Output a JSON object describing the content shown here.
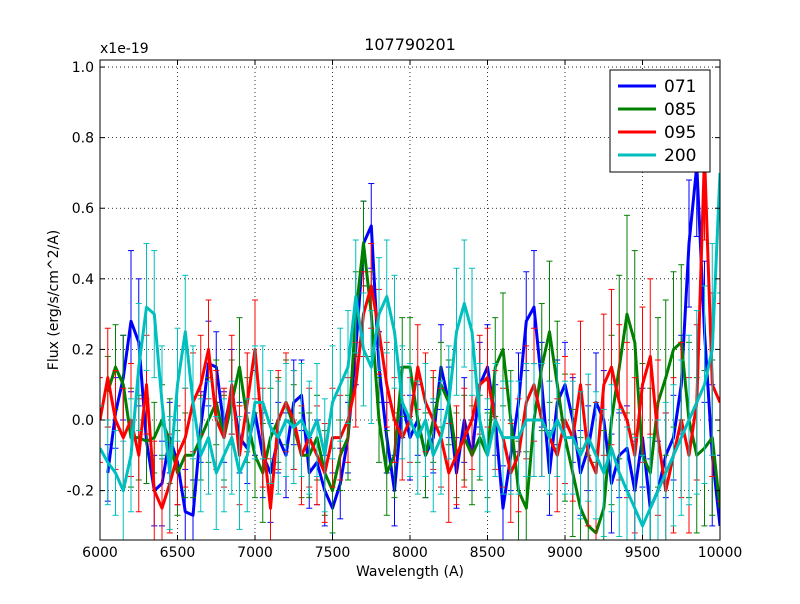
{
  "chart_data": {
    "type": "line",
    "title": "107790201",
    "xlabel": "Wavelength (A)",
    "ylabel": "Flux (erg/s/cm^2/A)",
    "y_multiplier_label": "x1e-19",
    "xlim": [
      6000,
      10000
    ],
    "ylim": [
      -0.34,
      1.02
    ],
    "xticks": [
      6000,
      6500,
      7000,
      7500,
      8000,
      8500,
      9000,
      9500,
      10000
    ],
    "xtick_labels": [
      "6000",
      "6500",
      "7000",
      "7500",
      "8000",
      "8500",
      "9000",
      "9500",
      "10000"
    ],
    "yticks": [
      -0.2,
      0.0,
      0.2,
      0.4,
      0.6,
      0.8,
      1.0
    ],
    "ytick_labels": [
      "-0.2",
      "0.0",
      "0.2",
      "0.4",
      "0.6",
      "0.8",
      "1.0"
    ],
    "grid": true,
    "legend_position": "top-right",
    "error_bars": true,
    "series": [
      {
        "name": "071",
        "color": "#0000ff",
        "x": [
          6050,
          6100,
          6150,
          6200,
          6250,
          6300,
          6350,
          6400,
          6450,
          6500,
          6550,
          6600,
          6650,
          6700,
          6750,
          6800,
          6850,
          6900,
          6950,
          7000,
          7050,
          7100,
          7150,
          7200,
          7250,
          7300,
          7350,
          7400,
          7450,
          7500,
          7550,
          7600,
          7650,
          7700,
          7750,
          7800,
          7850,
          7900,
          7950,
          8000,
          8050,
          8100,
          8150,
          8200,
          8250,
          8300,
          8350,
          8400,
          8450,
          8500,
          8550,
          8600,
          8650,
          8700,
          8750,
          8800,
          8850,
          8900,
          8950,
          9000,
          9050,
          9100,
          9150,
          9200,
          9250,
          9300,
          9350,
          9400,
          9450,
          9500,
          9550,
          9600,
          9650,
          9700,
          9750,
          9800,
          9850,
          9900,
          9950,
          10000
        ],
        "y": [
          -0.15,
          0.02,
          0.12,
          0.28,
          0.22,
          -0.06,
          -0.2,
          -0.18,
          -0.05,
          -0.12,
          -0.26,
          -0.27,
          -0.02,
          0.16,
          0.15,
          -0.02,
          0.08,
          -0.05,
          -0.08,
          0.02,
          -0.1,
          -0.15,
          -0.05,
          -0.1,
          0.05,
          0.07,
          -0.15,
          -0.12,
          -0.2,
          -0.25,
          -0.18,
          -0.05,
          0.2,
          0.5,
          0.55,
          0.15,
          -0.05,
          -0.2,
          0.05,
          -0.05,
          0.0,
          -0.1,
          -0.05,
          0.15,
          0.05,
          -0.15,
          0.0,
          -0.1,
          0.1,
          0.15,
          0.0,
          -0.25,
          -0.1,
          0.05,
          0.28,
          0.32,
          0.1,
          -0.15,
          0.05,
          0.1,
          0.0,
          -0.15,
          -0.08,
          0.05,
          0.0,
          -0.18,
          -0.1,
          -0.08,
          -0.2,
          -0.05,
          -0.25,
          -0.2,
          -0.1,
          -0.05,
          0.1,
          0.5,
          0.72,
          0.25,
          -0.1,
          -0.3
        ],
        "err": [
          0.08,
          0.1,
          0.12,
          0.2,
          0.18,
          0.12,
          0.1,
          0.12,
          0.1,
          0.12,
          0.12,
          0.1,
          0.1,
          0.12,
          0.1,
          0.1,
          0.12,
          0.1,
          0.1,
          0.12,
          0.12,
          0.14,
          0.1,
          0.12,
          0.12,
          0.1,
          0.1,
          0.12,
          0.1,
          0.1,
          0.1,
          0.1,
          0.1,
          0.12,
          0.12,
          0.1,
          0.1,
          0.1,
          0.1,
          0.12,
          0.1,
          0.12,
          0.1,
          0.12,
          0.1,
          0.1,
          0.12,
          0.1,
          0.12,
          0.12,
          0.1,
          0.12,
          0.1,
          0.14,
          0.14,
          0.16,
          0.12,
          0.12,
          0.12,
          0.12,
          0.12,
          0.12,
          0.12,
          0.14,
          0.14,
          0.14,
          0.12,
          0.12,
          0.14,
          0.14,
          0.14,
          0.14,
          0.12,
          0.12,
          0.14,
          0.18,
          0.2,
          0.2,
          0.2,
          0.2
        ]
      },
      {
        "name": "085",
        "color": "#008000",
        "x": [
          6050,
          6100,
          6150,
          6200,
          6250,
          6300,
          6350,
          6400,
          6450,
          6500,
          6550,
          6600,
          6650,
          6700,
          6750,
          6800,
          6850,
          6900,
          6950,
          7000,
          7050,
          7100,
          7150,
          7200,
          7250,
          7300,
          7350,
          7400,
          7450,
          7500,
          7550,
          7600,
          7650,
          7700,
          7750,
          7800,
          7850,
          7900,
          7950,
          8000,
          8050,
          8100,
          8150,
          8200,
          8250,
          8300,
          8350,
          8400,
          8450,
          8500,
          8550,
          8600,
          8650,
          8700,
          8750,
          8800,
          8850,
          8900,
          8950,
          9000,
          9050,
          9100,
          9150,
          9200,
          9250,
          9300,
          9350,
          9400,
          9450,
          9500,
          9550,
          9600,
          9650,
          9700,
          9750,
          9800,
          9850,
          9900,
          9950,
          10000
        ],
        "y": [
          0.08,
          0.15,
          0.1,
          -0.05,
          -0.05,
          -0.06,
          -0.05,
          0.0,
          -0.06,
          -0.15,
          -0.1,
          -0.1,
          -0.05,
          0.0,
          0.05,
          -0.05,
          0.05,
          0.15,
          0.0,
          -0.1,
          -0.15,
          -0.05,
          0.0,
          0.05,
          -0.02,
          -0.1,
          -0.1,
          -0.05,
          -0.15,
          -0.2,
          -0.1,
          -0.05,
          0.3,
          0.5,
          0.3,
          0.0,
          -0.15,
          -0.1,
          0.15,
          0.15,
          0.0,
          -0.1,
          0.0,
          0.1,
          0.05,
          -0.1,
          -0.05,
          -0.1,
          -0.05,
          -0.1,
          0.15,
          0.2,
          0.0,
          -0.2,
          -0.25,
          0.0,
          0.15,
          0.25,
          0.1,
          -0.05,
          -0.15,
          -0.25,
          -0.3,
          -0.32,
          -0.25,
          0.0,
          0.15,
          0.3,
          0.22,
          -0.1,
          -0.15,
          0.05,
          0.12,
          0.2,
          0.22,
          0.0,
          -0.1,
          -0.08,
          -0.05,
          -0.25
        ],
        "err": [
          0.1,
          0.12,
          0.14,
          0.14,
          0.12,
          0.12,
          0.1,
          0.1,
          0.12,
          0.12,
          0.12,
          0.12,
          0.12,
          0.12,
          0.12,
          0.12,
          0.12,
          0.14,
          0.12,
          0.12,
          0.14,
          0.14,
          0.12,
          0.12,
          0.12,
          0.12,
          0.12,
          0.12,
          0.12,
          0.12,
          0.1,
          0.12,
          0.12,
          0.12,
          0.12,
          0.12,
          0.12,
          0.12,
          0.14,
          0.14,
          0.12,
          0.12,
          0.12,
          0.12,
          0.12,
          0.12,
          0.12,
          0.14,
          0.12,
          0.12,
          0.14,
          0.16,
          0.14,
          0.14,
          0.16,
          0.16,
          0.18,
          0.2,
          0.18,
          0.18,
          0.18,
          0.2,
          0.2,
          0.2,
          0.22,
          0.24,
          0.26,
          0.28,
          0.26,
          0.26,
          0.24,
          0.24,
          0.22,
          0.22,
          0.22,
          0.22,
          0.22,
          0.22,
          0.22,
          0.22
        ]
      },
      {
        "name": "095",
        "color": "#ff0000",
        "x": [
          6000,
          6050,
          6100,
          6150,
          6200,
          6250,
          6300,
          6350,
          6400,
          6450,
          6500,
          6550,
          6600,
          6650,
          6700,
          6750,
          6800,
          6850,
          6900,
          6950,
          7000,
          7050,
          7100,
          7150,
          7200,
          7250,
          7300,
          7350,
          7400,
          7450,
          7500,
          7550,
          7600,
          7650,
          7700,
          7750,
          7800,
          7850,
          7900,
          7950,
          8000,
          8050,
          8100,
          8150,
          8200,
          8250,
          8300,
          8350,
          8400,
          8450,
          8500,
          8550,
          8600,
          8650,
          8700,
          8750,
          8800,
          8850,
          8900,
          8950,
          9000,
          9050,
          9100,
          9150,
          9200,
          9250,
          9300,
          9350,
          9400,
          9450,
          9500,
          9550,
          9600,
          9650,
          9700,
          9750,
          9800,
          9850,
          9900,
          9950,
          10000
        ],
        "y": [
          0.0,
          0.12,
          0.0,
          -0.05,
          0.0,
          -0.1,
          0.1,
          -0.2,
          -0.25,
          -0.18,
          -0.1,
          -0.05,
          0.05,
          0.1,
          0.2,
          0.0,
          -0.05,
          0.1,
          -0.1,
          0.05,
          0.2,
          -0.05,
          -0.25,
          0.0,
          0.05,
          0.0,
          -0.1,
          -0.05,
          -0.1,
          -0.15,
          -0.05,
          -0.05,
          0.0,
          0.1,
          0.3,
          0.38,
          0.25,
          0.1,
          0.0,
          -0.05,
          0.0,
          0.15,
          0.05,
          0.0,
          -0.05,
          -0.15,
          -0.1,
          -0.05,
          0.0,
          0.1,
          0.12,
          0.0,
          -0.05,
          -0.15,
          -0.1,
          0.05,
          0.1,
          0.0,
          -0.05,
          -0.1,
          0.0,
          -0.05,
          0.1,
          -0.1,
          -0.15,
          0.1,
          0.15,
          0.05,
          0.0,
          -0.1,
          0.1,
          0.18,
          -0.05,
          -0.2,
          -0.1,
          0.0,
          -0.1,
          0.05,
          0.75,
          0.1,
          0.05
        ],
        "err": [
          0.12,
          0.14,
          0.14,
          0.14,
          0.16,
          0.16,
          0.14,
          0.14,
          0.14,
          0.14,
          0.14,
          0.14,
          0.14,
          0.14,
          0.14,
          0.14,
          0.14,
          0.14,
          0.14,
          0.14,
          0.14,
          0.14,
          0.14,
          0.14,
          0.14,
          0.14,
          0.14,
          0.14,
          0.14,
          0.14,
          0.14,
          0.12,
          0.12,
          0.12,
          0.12,
          0.12,
          0.12,
          0.12,
          0.12,
          0.12,
          0.12,
          0.12,
          0.14,
          0.14,
          0.14,
          0.14,
          0.14,
          0.14,
          0.14,
          0.14,
          0.14,
          0.14,
          0.14,
          0.14,
          0.16,
          0.16,
          0.16,
          0.16,
          0.16,
          0.16,
          0.18,
          0.18,
          0.18,
          0.2,
          0.2,
          0.2,
          0.22,
          0.22,
          0.22,
          0.22,
          0.22,
          0.22,
          0.22,
          0.22,
          0.22,
          0.22,
          0.22,
          0.22,
          0.24,
          0.26,
          0.28
        ]
      },
      {
        "name": "200",
        "color": "#00bfbf",
        "x": [
          6000,
          6050,
          6100,
          6150,
          6200,
          6250,
          6300,
          6350,
          6400,
          6450,
          6500,
          6550,
          6600,
          6650,
          6700,
          6750,
          6800,
          6850,
          6900,
          6950,
          7000,
          7050,
          7100,
          7150,
          7200,
          7250,
          7300,
          7350,
          7400,
          7450,
          7500,
          7550,
          7600,
          7650,
          7700,
          7750,
          7800,
          7850,
          7900,
          7950,
          8000,
          8050,
          8100,
          8150,
          8200,
          8250,
          8300,
          8350,
          8400,
          8450,
          8500,
          8550,
          8600,
          8650,
          8700,
          8750,
          8800,
          8850,
          8900,
          8950,
          9000,
          9050,
          9100,
          9150,
          9200,
          9250,
          9300,
          9350,
          9400,
          9450,
          9500,
          9550,
          9600,
          9650,
          9700,
          9750,
          9800,
          9850,
          9900,
          9950,
          10000
        ],
        "y": [
          -0.08,
          -0.12,
          -0.15,
          -0.2,
          -0.1,
          0.15,
          0.32,
          0.3,
          0.05,
          -0.15,
          0.1,
          0.25,
          0.05,
          -0.1,
          -0.05,
          -0.15,
          -0.1,
          -0.05,
          -0.15,
          -0.1,
          0.05,
          0.05,
          -0.02,
          -0.05,
          0.0,
          -0.02,
          0.0,
          -0.05,
          0.0,
          -0.1,
          0.05,
          0.1,
          0.15,
          0.35,
          0.2,
          0.15,
          0.3,
          0.35,
          0.25,
          0.05,
          0.0,
          -0.05,
          0.0,
          -0.1,
          -0.05,
          0.05,
          0.25,
          0.33,
          0.25,
          0.0,
          -0.1,
          0.0,
          -0.05,
          -0.05,
          -0.05,
          0.0,
          0.0,
          0.0,
          -0.05,
          0.0,
          -0.05,
          -0.05,
          -0.1,
          -0.05,
          -0.1,
          -0.15,
          -0.08,
          -0.15,
          -0.2,
          -0.25,
          -0.3,
          -0.25,
          -0.2,
          -0.15,
          -0.1,
          -0.05,
          0.0,
          0.05,
          0.1,
          0.2,
          0.7
        ],
        "err": [
          0.12,
          0.12,
          0.12,
          0.14,
          0.16,
          0.18,
          0.18,
          0.18,
          0.16,
          0.16,
          0.16,
          0.16,
          0.16,
          0.16,
          0.16,
          0.16,
          0.16,
          0.16,
          0.16,
          0.16,
          0.16,
          0.16,
          0.16,
          0.16,
          0.16,
          0.16,
          0.16,
          0.16,
          0.16,
          0.16,
          0.16,
          0.16,
          0.16,
          0.16,
          0.16,
          0.16,
          0.16,
          0.16,
          0.16,
          0.16,
          0.16,
          0.16,
          0.16,
          0.16,
          0.16,
          0.16,
          0.18,
          0.18,
          0.18,
          0.16,
          0.16,
          0.16,
          0.16,
          0.16,
          0.16,
          0.16,
          0.16,
          0.16,
          0.16,
          0.16,
          0.16,
          0.16,
          0.18,
          0.18,
          0.18,
          0.18,
          0.18,
          0.18,
          0.18,
          0.2,
          0.2,
          0.2,
          0.2,
          0.2,
          0.2,
          0.22,
          0.24,
          0.26,
          0.28,
          0.3,
          0.34
        ]
      }
    ]
  }
}
